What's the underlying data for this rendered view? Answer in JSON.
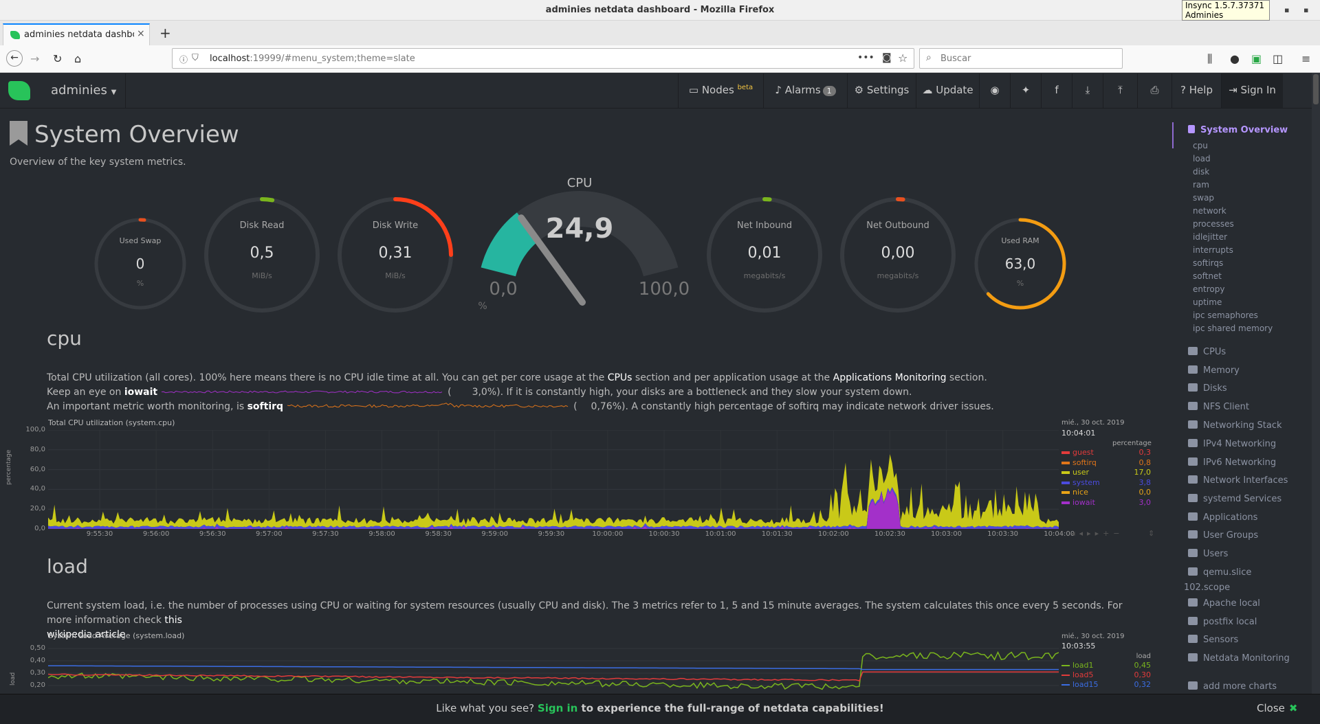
{
  "window": {
    "title": "adminies netdata dashboard - Mozilla Firefox",
    "insync_line1": "Insync 1.5.7.37371",
    "insync_line2": "Adminies"
  },
  "tab": {
    "label": "adminies netdata dashboar",
    "close": "×",
    "new": "+"
  },
  "url": {
    "host": "localhost",
    "rest": ":19999/#menu_system;theme=slate"
  },
  "search": {
    "placeholder": "Buscar"
  },
  "nav": {
    "hostname": "adminies",
    "nodes": "Nodes",
    "nodes_sup": "beta",
    "alarms": "Alarms",
    "alarms_count": "1",
    "settings": "Settings",
    "update": "Update",
    "help": "Help",
    "sign_in": "Sign In"
  },
  "page": {
    "title": "System Overview",
    "subtitle": "Overview of the key system metrics."
  },
  "gauges": {
    "swap": {
      "label": "Used Swap",
      "value": "0",
      "unit": "%",
      "fraction": 0.0
    },
    "disk_read": {
      "label": "Disk Read",
      "value": "0,5",
      "unit": "MiB/s",
      "fraction": 0.03
    },
    "disk_write": {
      "label": "Disk Write",
      "value": "0,31",
      "unit": "MiB/s",
      "fraction": 0.25
    },
    "cpu": {
      "label": "CPU",
      "value": "24,9",
      "min": "0,0",
      "max": "100,0",
      "unit": "%",
      "fraction": 0.249
    },
    "net_in": {
      "label": "Net Inbound",
      "value": "0,01",
      "unit": "megabits/s",
      "fraction": 0.01
    },
    "net_out": {
      "label": "Net Outbound",
      "value": "0,00",
      "unit": "megabits/s",
      "fraction": 0.01
    },
    "ram": {
      "label": "Used RAM",
      "value": "63,0",
      "unit": "%",
      "fraction": 0.63
    }
  },
  "cpu_section": {
    "heading": "cpu",
    "line1_a": "Total CPU utilization (all cores). 100% here means there is no CPU idle time at all. You can get per core usage at the ",
    "line1_link1": "CPUs",
    "line1_b": " section and per application usage at the ",
    "line1_link2": "Applications Monitoring",
    "line1_c": " section.",
    "line2_a": "Keep an eye on ",
    "line2_b": "iowait",
    "line2_val": "3,0%",
    "line2_c": "). If it is constantly high, your disks are a bottleneck and they slow your system down.",
    "line3_a": "An important metric worth monitoring, is ",
    "line3_b": "softirq",
    "line3_val": "0,76%",
    "line3_c": "). A constantly high percentage of softirq may indicate network driver issues.",
    "paren_open": "(",
    "chart_title": "Total CPU utilization (system.cpu)",
    "ylabel": "percentage",
    "legend_date": "mié., 30 oct. 2019",
    "legend_time": "10:04:01",
    "legend_unit": "percentage"
  },
  "load_section": {
    "heading": "load",
    "desc_a": "Current system load, i.e. the number of processes using CPU or waiting for system resources (usually CPU and disk). The 3 metrics refer to 1, 5 and 15 minute averages. The system calculates this once every 5 seconds. For more information check ",
    "desc_link": "this",
    "desc_link2": "wikipedia article",
    "chart_title": "System Load Average (system.load)",
    "ylabel": "load",
    "legend_date": "mié., 30 oct. 2019",
    "legend_time": "10:03:55",
    "legend_unit": "load"
  },
  "chart_data": [
    {
      "type": "area",
      "title": "Total CPU utilization (system.cpu)",
      "ylabel": "percentage",
      "ylim": [
        0,
        100
      ],
      "yticks": [
        "100,0",
        "80,0",
        "60,0",
        "40,0",
        "20,0",
        "0,0"
      ],
      "xticks": [
        "9:55:30",
        "9:56:00",
        "9:56:30",
        "9:57:00",
        "9:57:30",
        "9:58:00",
        "9:58:30",
        "9:59:00",
        "9:59:30",
        "10:00:00",
        "10:00:30",
        "10:01:00",
        "10:01:30",
        "10:02:00",
        "10:02:30",
        "10:03:00",
        "10:03:30",
        "10:04:00"
      ],
      "series": [
        {
          "name": "guest",
          "value": "0,3",
          "color": "#e33b3b"
        },
        {
          "name": "softirq",
          "value": "0,8",
          "color": "#e0751a"
        },
        {
          "name": "user",
          "value": "17,0",
          "color": "#c9c918"
        },
        {
          "name": "system",
          "value": "3,8",
          "color": "#4b4bde"
        },
        {
          "name": "nice",
          "value": "0,0",
          "color": "#e8a317"
        },
        {
          "name": "iowait",
          "value": "3,0",
          "color": "#a330c9"
        }
      ]
    },
    {
      "type": "line",
      "title": "System Load Average (system.load)",
      "ylabel": "load",
      "yticks": [
        "0,50",
        "0,40",
        "0,30",
        "0,20"
      ],
      "series": [
        {
          "name": "load1",
          "value": "0,45",
          "color": "#7ab51d"
        },
        {
          "name": "load5",
          "value": "0,30",
          "color": "#e33b3b"
        },
        {
          "name": "load15",
          "value": "0,32",
          "color": "#3b6de3"
        }
      ]
    }
  ],
  "sidebar": {
    "active": "System Overview",
    "subs": [
      "cpu",
      "load",
      "disk",
      "ram",
      "swap",
      "network",
      "processes",
      "idlejitter",
      "interrupts",
      "softirqs",
      "softnet",
      "entropy",
      "uptime",
      "ipc semaphores",
      "ipc shared memory"
    ],
    "items": [
      "CPUs",
      "Memory",
      "Disks",
      "NFS Client",
      "Networking Stack",
      "IPv4 Networking",
      "IPv6 Networking",
      "Network Interfaces",
      "systemd Services",
      "Applications",
      "User Groups",
      "Users",
      "qemu.slice",
      "102.scope",
      "Apache local",
      "postfix local",
      "Sensors",
      "Netdata Monitoring",
      "add more charts"
    ]
  },
  "footer": {
    "a": "Like what you see? ",
    "sign": "Sign in",
    "b": " to experience the full-range of netdata capabilities!",
    "close": "Close",
    "close_x": "✖"
  }
}
